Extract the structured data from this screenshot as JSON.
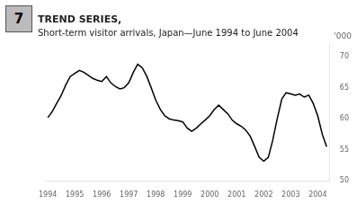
{
  "chart_data": {
    "type": "line",
    "title": "TREND SERIES,",
    "subtitle": "Short-term visitor arrivals, Japan—June 1994 to June 2004",
    "ylabel": "'000",
    "annotations": [
      "7"
    ],
    "color": "#000000",
    "grid": false,
    "xlim": [
      1993.92,
      2004.45
    ],
    "ylim": [
      50,
      72
    ],
    "xticks": [
      1994,
      1995,
      1996,
      1997,
      1998,
      1999,
      2000,
      2001,
      2002,
      2003,
      2004
    ],
    "yticks": [
      50,
      55,
      60,
      65,
      70
    ],
    "x": [
      1994.0,
      1994.17,
      1994.33,
      1994.5,
      1994.67,
      1994.83,
      1995.0,
      1995.17,
      1995.33,
      1995.5,
      1995.67,
      1995.83,
      1996.0,
      1996.17,
      1996.33,
      1996.5,
      1996.67,
      1996.83,
      1997.0,
      1997.17,
      1997.33,
      1997.5,
      1997.67,
      1997.83,
      1998.0,
      1998.17,
      1998.33,
      1998.5,
      1998.67,
      1998.83,
      1999.0,
      1999.17,
      1999.33,
      1999.5,
      1999.67,
      1999.83,
      2000.0,
      2000.17,
      2000.33,
      2000.5,
      2000.67,
      2000.83,
      2001.0,
      2001.17,
      2001.33,
      2001.5,
      2001.67,
      2001.83,
      2002.0,
      2002.17,
      2002.33,
      2002.5,
      2002.67,
      2002.83,
      2003.0,
      2003.17,
      2003.33,
      2003.5,
      2003.67,
      2003.83,
      2004.0,
      2004.17,
      2004.33
    ],
    "values": [
      60.2,
      61.2,
      62.5,
      63.8,
      65.5,
      66.8,
      67.3,
      67.8,
      67.5,
      67.0,
      66.5,
      66.2,
      66.0,
      66.8,
      65.8,
      65.2,
      64.8,
      65.0,
      65.8,
      67.5,
      68.8,
      68.2,
      66.8,
      65.0,
      63.0,
      61.5,
      60.5,
      60.0,
      59.8,
      59.7,
      59.5,
      58.5,
      58.0,
      58.5,
      59.2,
      59.8,
      60.5,
      61.5,
      62.2,
      61.5,
      60.8,
      59.8,
      59.2,
      58.8,
      58.2,
      57.2,
      55.5,
      53.8,
      53.2,
      53.8,
      56.5,
      60.0,
      63.2,
      64.2,
      64.0,
      63.8,
      64.0,
      63.5,
      63.8,
      62.5,
      60.5,
      57.5,
      55.5
    ]
  }
}
